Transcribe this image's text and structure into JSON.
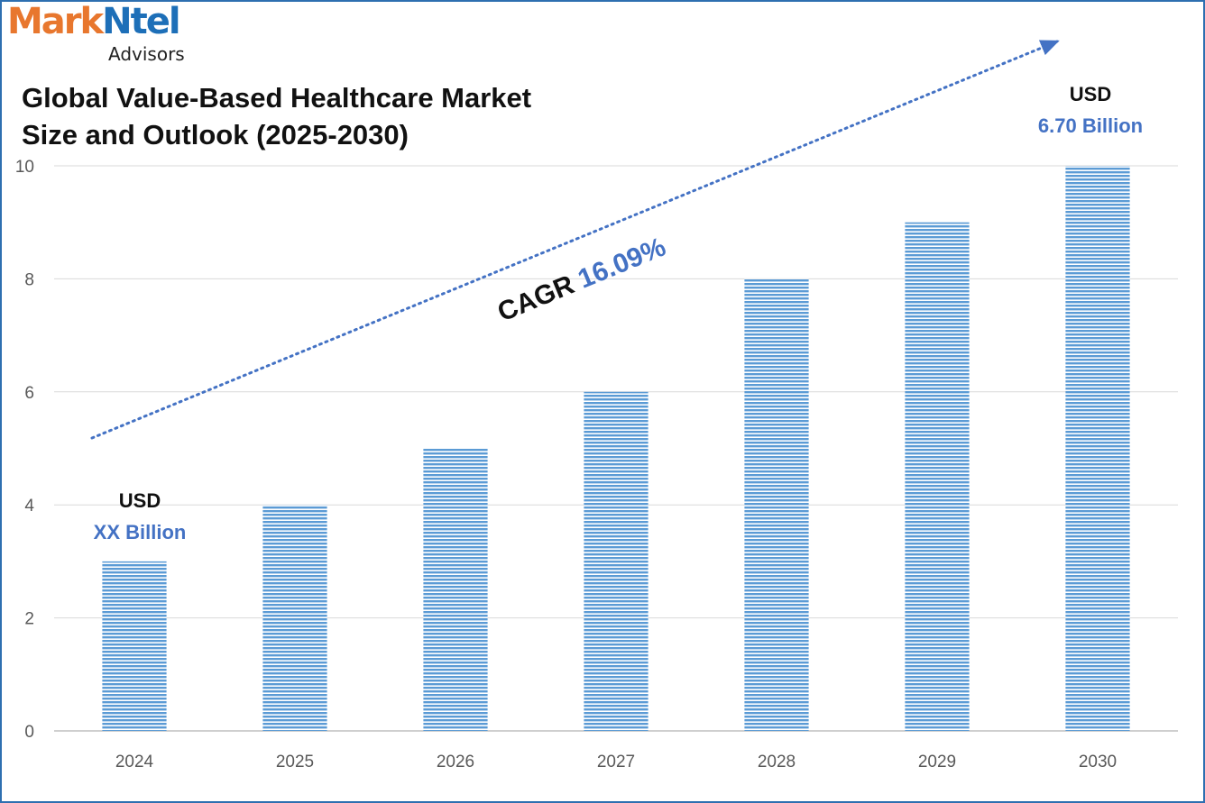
{
  "logo": {
    "part1": "Mark",
    "part2": "Ntel",
    "sub": "Advisors"
  },
  "title_line1": "Global Value-Based Healthcare Market",
  "title_line2": "Size and Outlook (2025-2030)",
  "colors": {
    "bar": "#5b9bd5",
    "accent": "#4472c4",
    "logo_orange": "#e8772e",
    "logo_blue": "#1d6fb8",
    "frame": "#2e6fb0"
  },
  "annotations": {
    "start": {
      "usd": "USD",
      "value": "XX Billion"
    },
    "end": {
      "usd": "USD",
      "value": "6.70 Billion"
    },
    "cagr_label": "CAGR",
    "cagr_value": "16.09%"
  },
  "chart_data": {
    "type": "bar",
    "categories": [
      "2024",
      "2025",
      "2026",
      "2027",
      "2028",
      "2029",
      "2030"
    ],
    "values": [
      3,
      4,
      5,
      6,
      8,
      9,
      10
    ],
    "ylim": [
      0,
      10
    ],
    "yticks": [
      "0",
      "2",
      "4",
      "6",
      "8",
      "10"
    ],
    "grid": true,
    "bar_pattern": "horizontal-stripes",
    "trend_arrow": "dotted, rising left to right"
  }
}
